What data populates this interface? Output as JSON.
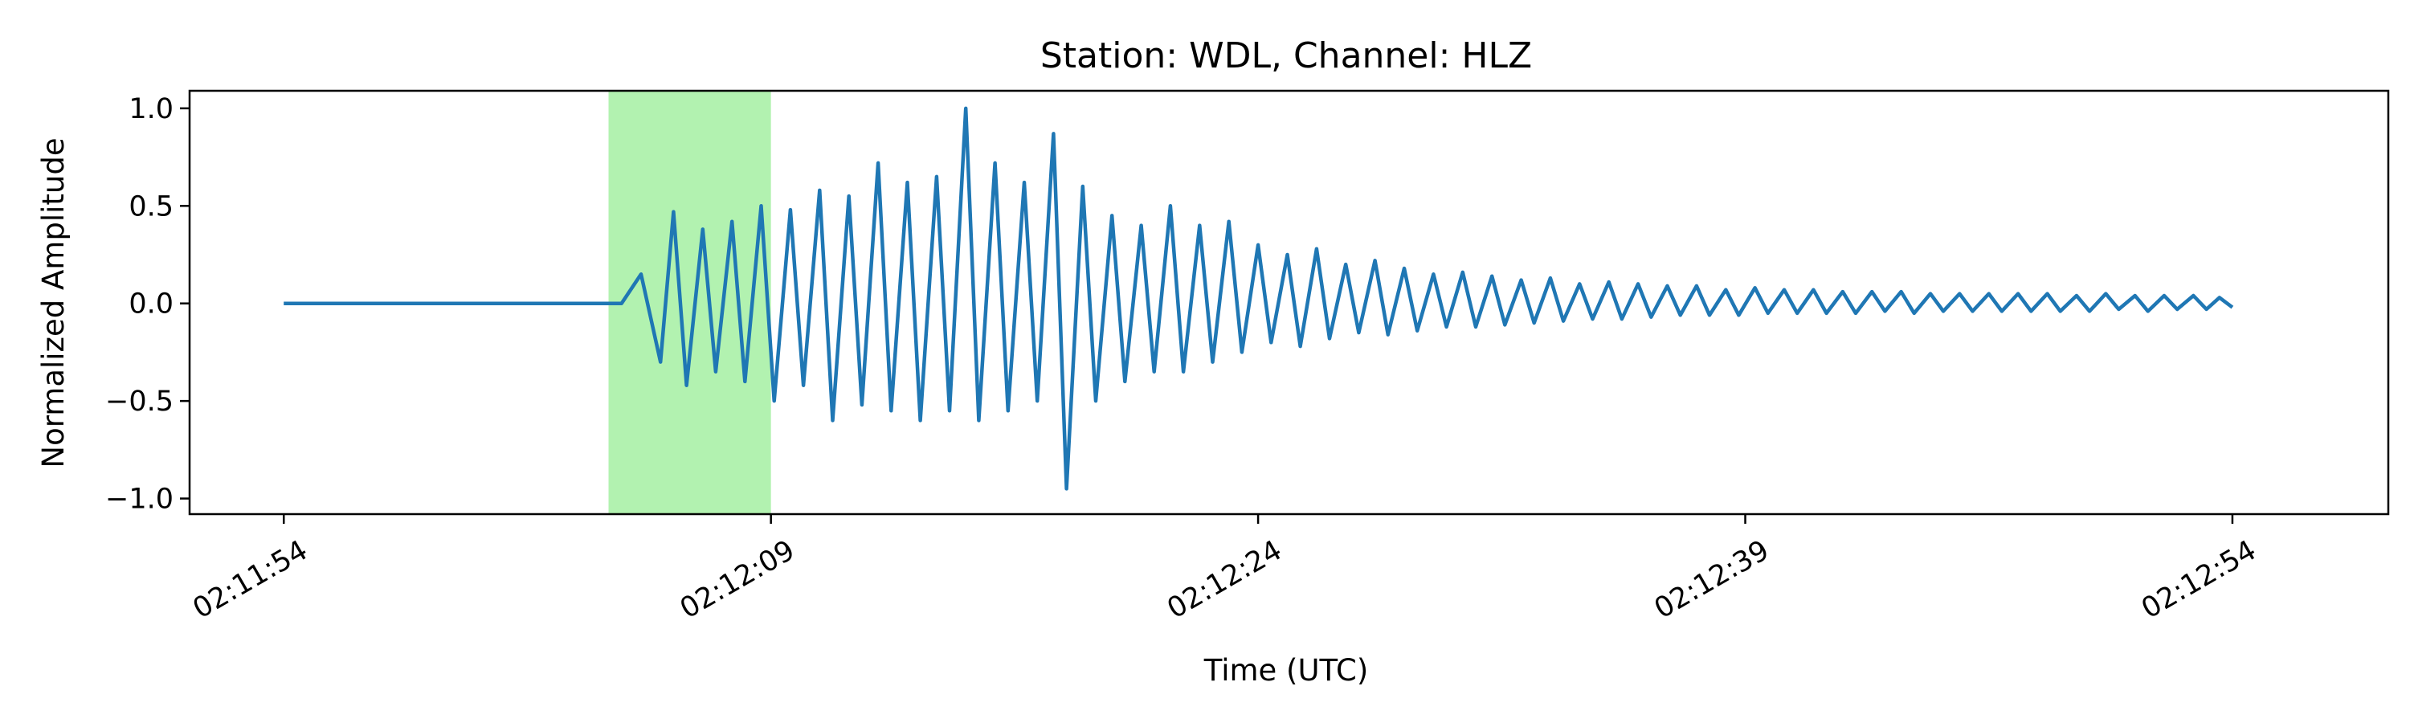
{
  "chart_data": {
    "type": "line",
    "title": "Station: WDL, Channel: HLZ",
    "xlabel": "Time (UTC)",
    "ylabel": "Normalized Amplitude",
    "x_unit": "seconds after 02:11:54 UTC",
    "xlim": [
      -2.9,
      64.8
    ],
    "ylim": [
      -1.08,
      1.09
    ],
    "x_ticks": [
      {
        "value": 0,
        "label": "02:11:54"
      },
      {
        "value": 15,
        "label": "02:12:09"
      },
      {
        "value": 30,
        "label": "02:12:24"
      },
      {
        "value": 45,
        "label": "02:12:39"
      },
      {
        "value": 60,
        "label": "02:12:54"
      }
    ],
    "y_ticks": [
      {
        "value": 1.0,
        "label": "1.0"
      },
      {
        "value": 0.5,
        "label": "0.5"
      },
      {
        "value": 0.0,
        "label": "0.0"
      },
      {
        "value": -0.5,
        "label": "−0.5"
      },
      {
        "value": -1.0,
        "label": "−1.0"
      }
    ],
    "highlight": {
      "x_start": 10.0,
      "x_end": 15.0,
      "color": "#b2f2b0"
    },
    "series": [
      {
        "color": "#1f77b4",
        "x": [
          0,
          5,
          9.5,
          10.4,
          11.0,
          11.6,
          12.0,
          12.4,
          12.9,
          13.3,
          13.8,
          14.2,
          14.7,
          15.1,
          15.6,
          16.0,
          16.5,
          16.9,
          17.4,
          17.8,
          18.3,
          18.7,
          19.2,
          19.6,
          20.1,
          20.5,
          21.0,
          21.4,
          21.9,
          22.3,
          22.8,
          23.2,
          23.7,
          24.1,
          24.6,
          25.0,
          25.5,
          25.9,
          26.4,
          26.8,
          27.3,
          27.7,
          28.2,
          28.6,
          29.1,
          29.5,
          30.0,
          30.4,
          30.9,
          31.3,
          31.8,
          32.2,
          32.7,
          33.1,
          33.6,
          34.0,
          34.5,
          34.9,
          35.4,
          35.8,
          36.3,
          36.7,
          37.2,
          37.6,
          38.1,
          38.5,
          39.0,
          39.4,
          39.9,
          40.3,
          40.8,
          41.2,
          41.7,
          42.1,
          42.6,
          43.0,
          43.5,
          43.9,
          44.4,
          44.8,
          45.3,
          45.7,
          46.2,
          46.6,
          47.1,
          47.5,
          48.0,
          48.4,
          48.9,
          49.3,
          49.8,
          50.2,
          50.7,
          51.1,
          51.6,
          52.0,
          52.5,
          52.9,
          53.4,
          53.8,
          54.3,
          54.7,
          55.2,
          55.6,
          56.1,
          56.5,
          57.0,
          57.4,
          57.9,
          58.3,
          58.8,
          59.2,
          59.6,
          60.0
        ],
        "y": [
          0.0,
          0.0,
          0.0,
          0.0,
          0.15,
          -0.3,
          0.47,
          -0.42,
          0.38,
          -0.35,
          0.42,
          -0.4,
          0.5,
          -0.5,
          0.48,
          -0.42,
          0.58,
          -0.6,
          0.55,
          -0.52,
          0.72,
          -0.55,
          0.62,
          -0.6,
          0.65,
          -0.55,
          1.0,
          -0.6,
          0.72,
          -0.55,
          0.62,
          -0.5,
          0.87,
          -0.95,
          0.6,
          -0.5,
          0.45,
          -0.4,
          0.4,
          -0.35,
          0.5,
          -0.35,
          0.4,
          -0.3,
          0.42,
          -0.25,
          0.3,
          -0.2,
          0.25,
          -0.22,
          0.28,
          -0.18,
          0.2,
          -0.15,
          0.22,
          -0.16,
          0.18,
          -0.14,
          0.15,
          -0.12,
          0.16,
          -0.12,
          0.14,
          -0.11,
          0.12,
          -0.1,
          0.13,
          -0.09,
          0.1,
          -0.08,
          0.11,
          -0.08,
          0.1,
          -0.07,
          0.09,
          -0.06,
          0.09,
          -0.06,
          0.07,
          -0.06,
          0.08,
          -0.05,
          0.07,
          -0.05,
          0.07,
          -0.05,
          0.06,
          -0.05,
          0.06,
          -0.04,
          0.06,
          -0.05,
          0.05,
          -0.04,
          0.05,
          -0.04,
          0.05,
          -0.04,
          0.05,
          -0.04,
          0.05,
          -0.04,
          0.04,
          -0.04,
          0.05,
          -0.03,
          0.04,
          -0.04,
          0.04,
          -0.03,
          0.04,
          -0.03,
          0.03,
          -0.02
        ]
      }
    ]
  }
}
